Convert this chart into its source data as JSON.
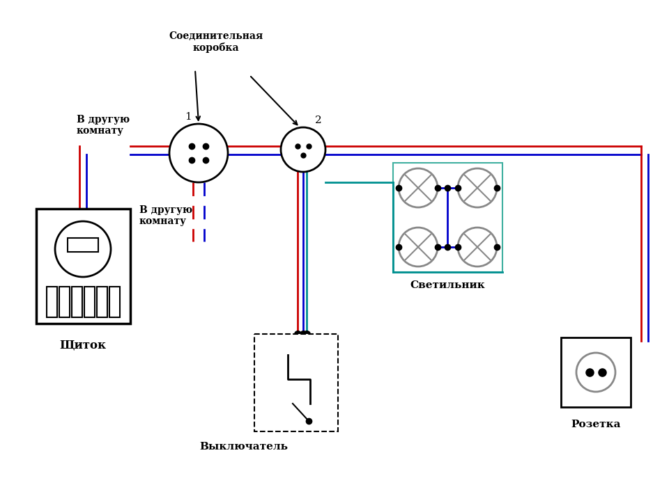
{
  "line_red": "#cc0000",
  "line_blue": "#0000cc",
  "line_green": "#009090",
  "line_dark": "#000000",
  "label_junction1": "1",
  "label_junction2": "2",
  "label_box": "Соединительная\nкоробка",
  "label_room1": "В другую\nкомнату",
  "label_room2": "В другую\nкомнату",
  "label_schitok": "Щиток",
  "label_vykl": "Выключатель",
  "label_svetilnik": "Светильник",
  "label_rozetka": "Розетка"
}
